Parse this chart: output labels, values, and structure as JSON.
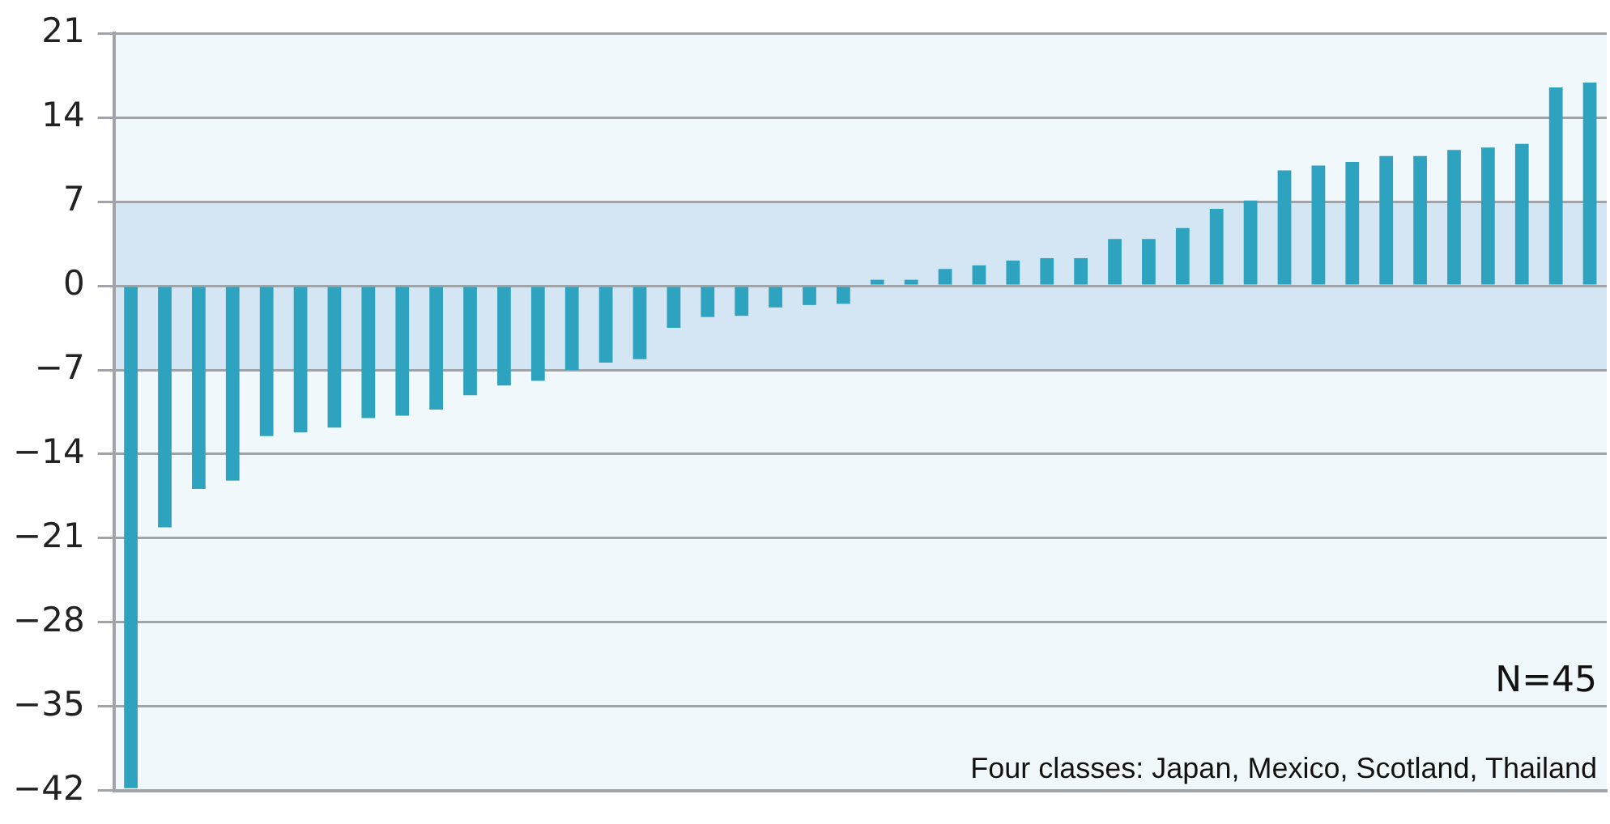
{
  "chart_data": {
    "type": "bar",
    "categories": [
      null,
      null,
      null,
      null,
      null,
      null,
      null,
      null,
      null,
      null,
      null,
      null,
      null,
      null,
      null,
      null,
      null,
      null,
      null,
      null,
      null,
      null,
      null,
      null,
      null,
      null,
      null,
      null,
      null,
      null,
      null,
      null,
      null,
      null,
      null,
      null,
      null,
      null,
      null,
      null,
      null,
      null,
      null,
      null
    ],
    "values": [
      -41.8,
      -20.1,
      -16.9,
      -16.2,
      -12.5,
      -12.2,
      -11.8,
      -11.0,
      -10.8,
      -10.3,
      -9.1,
      -8.3,
      -7.9,
      -7.0,
      -6.4,
      -6.1,
      -3.5,
      -2.6,
      -2.5,
      -1.8,
      -1.6,
      -1.5,
      0.5,
      0.5,
      1.4,
      1.7,
      2.1,
      2.3,
      2.3,
      3.9,
      3.9,
      4.8,
      6.4,
      7.1,
      9.6,
      10.0,
      10.3,
      10.8,
      10.8,
      11.3,
      11.5,
      11.8,
      16.5,
      16.9
    ],
    "color": "#2ea3c0",
    "ylim": [
      -42,
      21
    ],
    "yticks": [
      -42,
      -35,
      -28,
      -21,
      -14,
      -7,
      0,
      7,
      14,
      21
    ],
    "grid": "y",
    "bands": [
      {
        "axis": "y",
        "from": -7,
        "to": 7,
        "color": "#d4e6f3"
      }
    ],
    "annotations": [
      "N=45",
      "Four classes: Japan, Mexico, Scotland, Thailand"
    ]
  }
}
